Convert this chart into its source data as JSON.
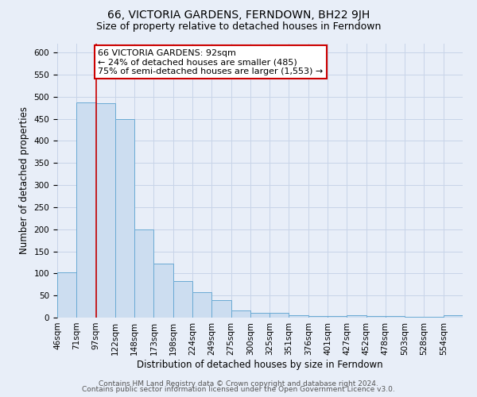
{
  "title": "66, VICTORIA GARDENS, FERNDOWN, BH22 9JH",
  "subtitle": "Size of property relative to detached houses in Ferndown",
  "xlabel": "Distribution of detached houses by size in Ferndown",
  "ylabel": "Number of detached properties",
  "footer_line1": "Contains HM Land Registry data © Crown copyright and database right 2024.",
  "footer_line2": "Contains public sector information licensed under the Open Government Licence v3.0.",
  "bin_labels": [
    "46sqm",
    "71sqm",
    "97sqm",
    "122sqm",
    "148sqm",
    "173sqm",
    "198sqm",
    "224sqm",
    "249sqm",
    "275sqm",
    "300sqm",
    "325sqm",
    "351sqm",
    "376sqm",
    "401sqm",
    "427sqm",
    "452sqm",
    "478sqm",
    "503sqm",
    "528sqm",
    "554sqm"
  ],
  "bar_heights": [
    103,
    487,
    485,
    450,
    200,
    122,
    82,
    57,
    40,
    16,
    10,
    10,
    5,
    3,
    3,
    5,
    3,
    3,
    2,
    2,
    5
  ],
  "bar_color": "#ccddf0",
  "bar_edge_color": "#6aaad4",
  "annotation_box_text": "66 VICTORIA GARDENS: 92sqm\n← 24% of detached houses are smaller (485)\n75% of semi-detached houses are larger (1,553) →",
  "annotation_box_edge_color": "#cc0000",
  "annotation_box_facecolor": "#ffffff",
  "vertical_line_x": 2,
  "vertical_line_color": "#cc0000",
  "ylim": [
    0,
    620
  ],
  "yticks": [
    0,
    50,
    100,
    150,
    200,
    250,
    300,
    350,
    400,
    450,
    500,
    550,
    600
  ],
  "grid_color": "#c8d4e8",
  "bg_color": "#e8eef8",
  "title_fontsize": 10,
  "subtitle_fontsize": 9,
  "axis_label_fontsize": 8.5,
  "tick_fontsize": 7.5,
  "footer_fontsize": 6.5,
  "annotation_fontsize": 8
}
